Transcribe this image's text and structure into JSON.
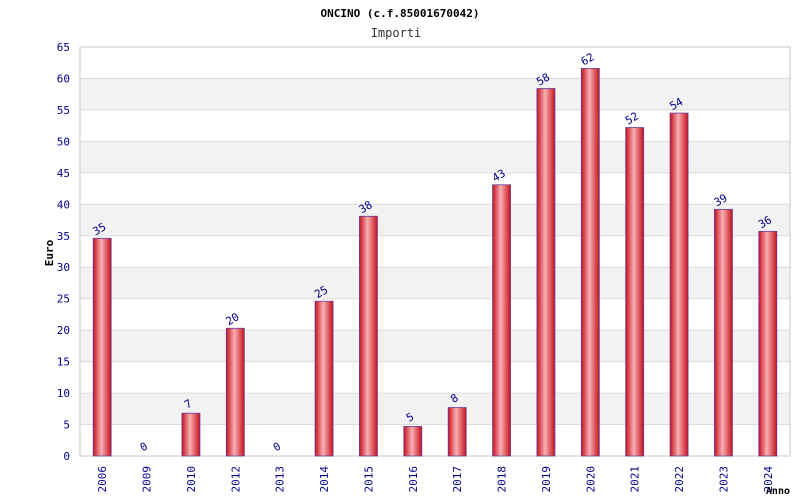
{
  "chart_data": {
    "type": "bar",
    "title": "ONCINO (c.f.85001670042)",
    "subtitle": "Importi",
    "xlabel": "Anno",
    "ylabel": "Euro",
    "ylim": [
      0,
      65
    ],
    "yticks": [
      0,
      5,
      10,
      15,
      20,
      25,
      30,
      35,
      40,
      45,
      50,
      55,
      60,
      65
    ],
    "categories": [
      "2006",
      "2009",
      "2010",
      "2012",
      "2013",
      "2014",
      "2015",
      "2016",
      "2017",
      "2018",
      "2019",
      "2020",
      "2021",
      "2022",
      "2023",
      "2024"
    ],
    "values": [
      34.6,
      0,
      6.8,
      20.3,
      0,
      24.6,
      38.1,
      4.7,
      7.7,
      43.1,
      58.4,
      61.6,
      52.2,
      54.5,
      39.2,
      35.7
    ],
    "labels": [
      "35",
      "0",
      "7",
      "20",
      "0",
      "25",
      "38",
      "5",
      "8",
      "43",
      "58",
      "62",
      "52",
      "54",
      "39",
      "36"
    ],
    "grid": true,
    "colors": {
      "bar_center": "#f6a8ac",
      "bar_edge": "#d0101e",
      "bar_stroke": "#6a3a9a",
      "tick_text": "#00008b",
      "band": "#f2f2f2",
      "grid": "#dcdcdc"
    }
  }
}
